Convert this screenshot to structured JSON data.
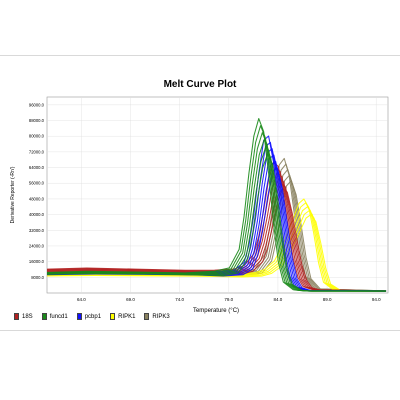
{
  "chart_data": {
    "type": "line",
    "title": "Melt Curve Plot",
    "xlabel": "Temperature (°C)",
    "ylabel": "Derivative Reporter (-Rn')",
    "xlim": [
      60.5,
      95.2
    ],
    "ylim": [
      0,
      100000
    ],
    "x_ticks": [
      "64.0",
      "69.0",
      "74.0",
      "79.0",
      "84.0",
      "89.0",
      "94.0"
    ],
    "y_ticks": [
      "8000.0",
      "16000.0",
      "24000.0",
      "32000.0",
      "40000.0",
      "48000.0",
      "56000.0",
      "64000.0",
      "72000.0",
      "80000.0",
      "88000.0",
      "96000.0"
    ],
    "grid": true,
    "legend_position": "bottom",
    "series": [
      {
        "name": "18S",
        "color": "#b22222",
        "curves": 6,
        "x": [
          60.5,
          65,
          70,
          75,
          78,
          80,
          81,
          82,
          82.5,
          83,
          83.5,
          84,
          84.5,
          85,
          85.5,
          86,
          86.5,
          87,
          88,
          95
        ],
        "y": [
          11500,
          12000,
          11500,
          11000,
          10500,
          11000,
          12500,
          18000,
          26000,
          38000,
          52000,
          60000,
          58000,
          46000,
          30000,
          16000,
          7000,
          3000,
          1500,
          1000
        ]
      },
      {
        "name": "funcd1",
        "color": "#1a8a1a",
        "curves": 6,
        "x": [
          60.5,
          65,
          70,
          75,
          78,
          79.5,
          80.5,
          81,
          81.5,
          82,
          82.5,
          83,
          83.5,
          84,
          84.5,
          85,
          86,
          87,
          95
        ],
        "y": [
          10000,
          10500,
          10200,
          9800,
          10000,
          11500,
          20000,
          35000,
          55000,
          72000,
          80000,
          74000,
          55000,
          32000,
          14000,
          5000,
          1500,
          1000,
          1000
        ]
      },
      {
        "name": "pcbp1",
        "color": "#1010ff",
        "curves": 6,
        "x": [
          60.5,
          65,
          70,
          75,
          78,
          80,
          81,
          81.5,
          82,
          82.5,
          83,
          83.5,
          84,
          84.5,
          85,
          85.5,
          86,
          87,
          95
        ],
        "y": [
          9800,
          10200,
          10000,
          9700,
          9800,
          10500,
          14000,
          22000,
          36000,
          55000,
          70000,
          72000,
          60000,
          40000,
          20000,
          8000,
          3000,
          1200,
          1000
        ]
      },
      {
        "name": "RIPK1",
        "color": "#ffff00",
        "curves": 5,
        "x": [
          60.5,
          65,
          70,
          75,
          80,
          82,
          83,
          84,
          85,
          86,
          86.5,
          87,
          87.5,
          88,
          88.5,
          89,
          90,
          91,
          95
        ],
        "y": [
          9000,
          9300,
          9100,
          8900,
          9000,
          9500,
          11000,
          15000,
          24000,
          36000,
          42000,
          44000,
          40000,
          28000,
          14000,
          5000,
          1500,
          1000,
          1000
        ]
      },
      {
        "name": "RIPK3",
        "color": "#8a8260",
        "curves": 5,
        "x": [
          60.5,
          65,
          70,
          75,
          80,
          82,
          83,
          83.5,
          84,
          84.5,
          85,
          85.5,
          86,
          86.5,
          87,
          88,
          95
        ],
        "y": [
          10000,
          10300,
          10100,
          9900,
          10000,
          11000,
          18000,
          30000,
          46000,
          60000,
          63000,
          55000,
          38000,
          20000,
          8000,
          2000,
          1000
        ]
      }
    ]
  }
}
